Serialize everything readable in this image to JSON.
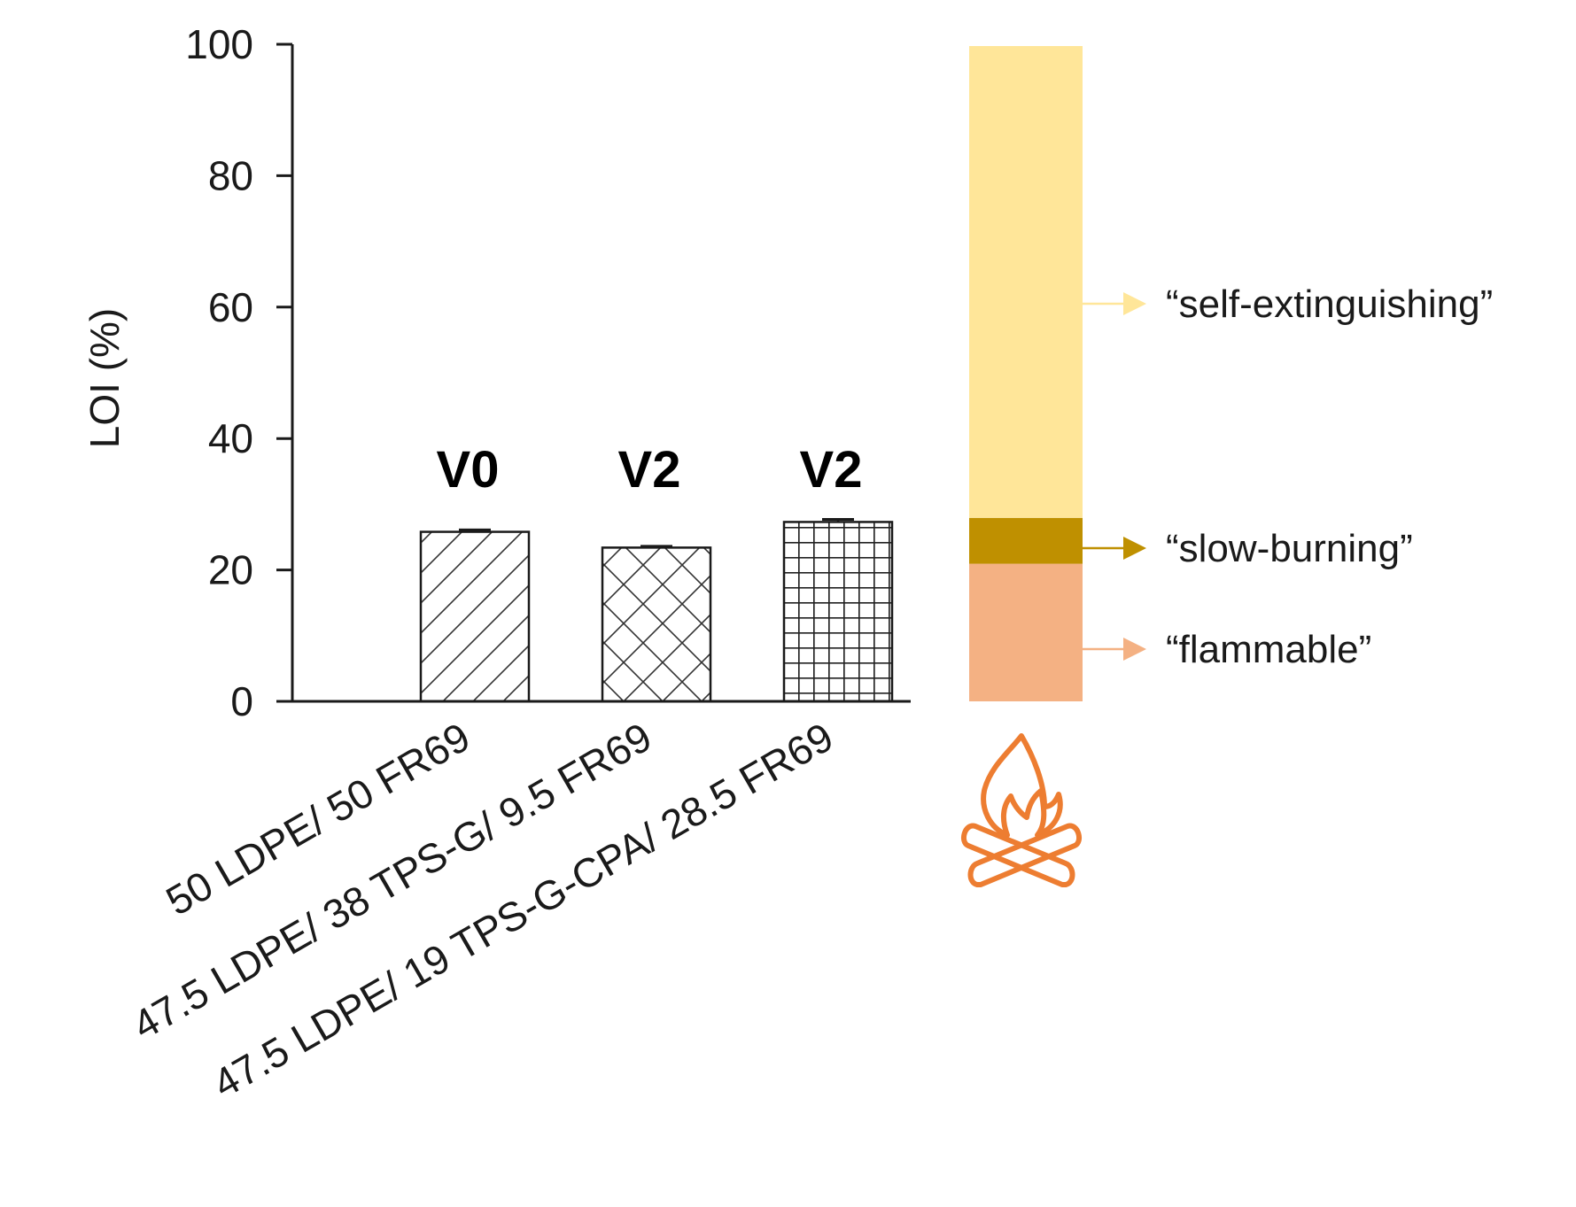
{
  "chart_data": {
    "type": "bar",
    "ylabel": "LOI (%)",
    "ylim": [
      0,
      100
    ],
    "yticks": [
      0,
      20,
      40,
      60,
      80,
      100
    ],
    "categories": [
      "50 LDPE/ 50 FR69",
      "47.5 LDPE/ 38 TPS-G/ 9.5 FR69",
      "47.5 LDPE/ 19 TPS-G-CPA/ 28.5 FR69"
    ],
    "values": [
      25.8,
      23.4,
      27.3
    ],
    "errors": [
      0.3,
      0.2,
      0.4
    ],
    "ratings": [
      "V0",
      "V2",
      "V2"
    ],
    "patterns": [
      "diagonal-hatch",
      "cross-hatch",
      "grid-hatch"
    ],
    "zones": [
      {
        "label": "“flammable”",
        "from": 0,
        "to": 21,
        "color": "#f4b183"
      },
      {
        "label": "“slow-burning”",
        "from": 21,
        "to": 28,
        "color": "#bf9000"
      },
      {
        "label": "“self-extinguishing”",
        "from": 28,
        "to": 100,
        "color": "#ffe699"
      }
    ],
    "icon": "campfire-icon",
    "icon_color": "#ed7d31"
  }
}
